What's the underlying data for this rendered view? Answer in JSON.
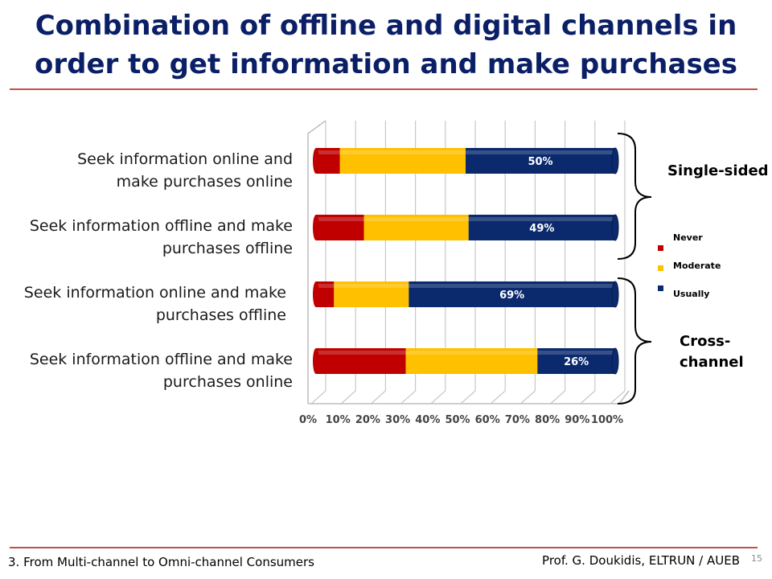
{
  "slide": {
    "title_line1": "Combination of offline and digital channels in",
    "title_line2": "order to get information and make purchases",
    "footer_left": "3. From Multi-channel to Omni-channel Consumers",
    "footer_right": "Prof. G. Doukidis, ELTRUN / AUEB",
    "page_number": "15"
  },
  "rows": [
    {
      "line1": "Seek information online and",
      "line2": "make purchases online"
    },
    {
      "line1": "Seek information offline and make",
      "line2": "purchases offline"
    },
    {
      "line1": "Seek information online and make",
      "line2": "purchases offline"
    },
    {
      "line1": "Seek information offline and make",
      "line2": "purchases online"
    }
  ],
  "groups": {
    "single": "Single-sided",
    "cross_line1": "Cross-",
    "cross_line2": "channel"
  },
  "legend": [
    {
      "label": "Never",
      "color": "#c00000"
    },
    {
      "label": "Moderate",
      "color": "#ffc000"
    },
    {
      "label": "Usually",
      "color": "#0b2a6e"
    }
  ],
  "chart_data": {
    "type": "bar",
    "orientation": "horizontal",
    "stacked": true,
    "percent": true,
    "categories": [
      "Seek information online and make purchases online",
      "Seek information offline and make purchases offline",
      "Seek information online and make purchases offline",
      "Seek information offline and make purchases online"
    ],
    "series": [
      {
        "name": "Never",
        "color": "#c00000",
        "values": [
          8,
          16,
          6,
          30
        ]
      },
      {
        "name": "Moderate",
        "color": "#ffc000",
        "values": [
          42,
          35,
          25,
          44
        ]
      },
      {
        "name": "Usually",
        "color": "#0b2a6e",
        "values": [
          50,
          49,
          69,
          26
        ]
      }
    ],
    "data_labels": [
      "50%",
      "49%",
      "69%",
      "26%"
    ],
    "xticks": [
      "0%",
      "10%",
      "20%",
      "30%",
      "40%",
      "50%",
      "60%",
      "70%",
      "80%",
      "90%",
      "100%"
    ],
    "xlim": [
      0,
      100
    ],
    "grid": true,
    "legend_position": "right"
  }
}
